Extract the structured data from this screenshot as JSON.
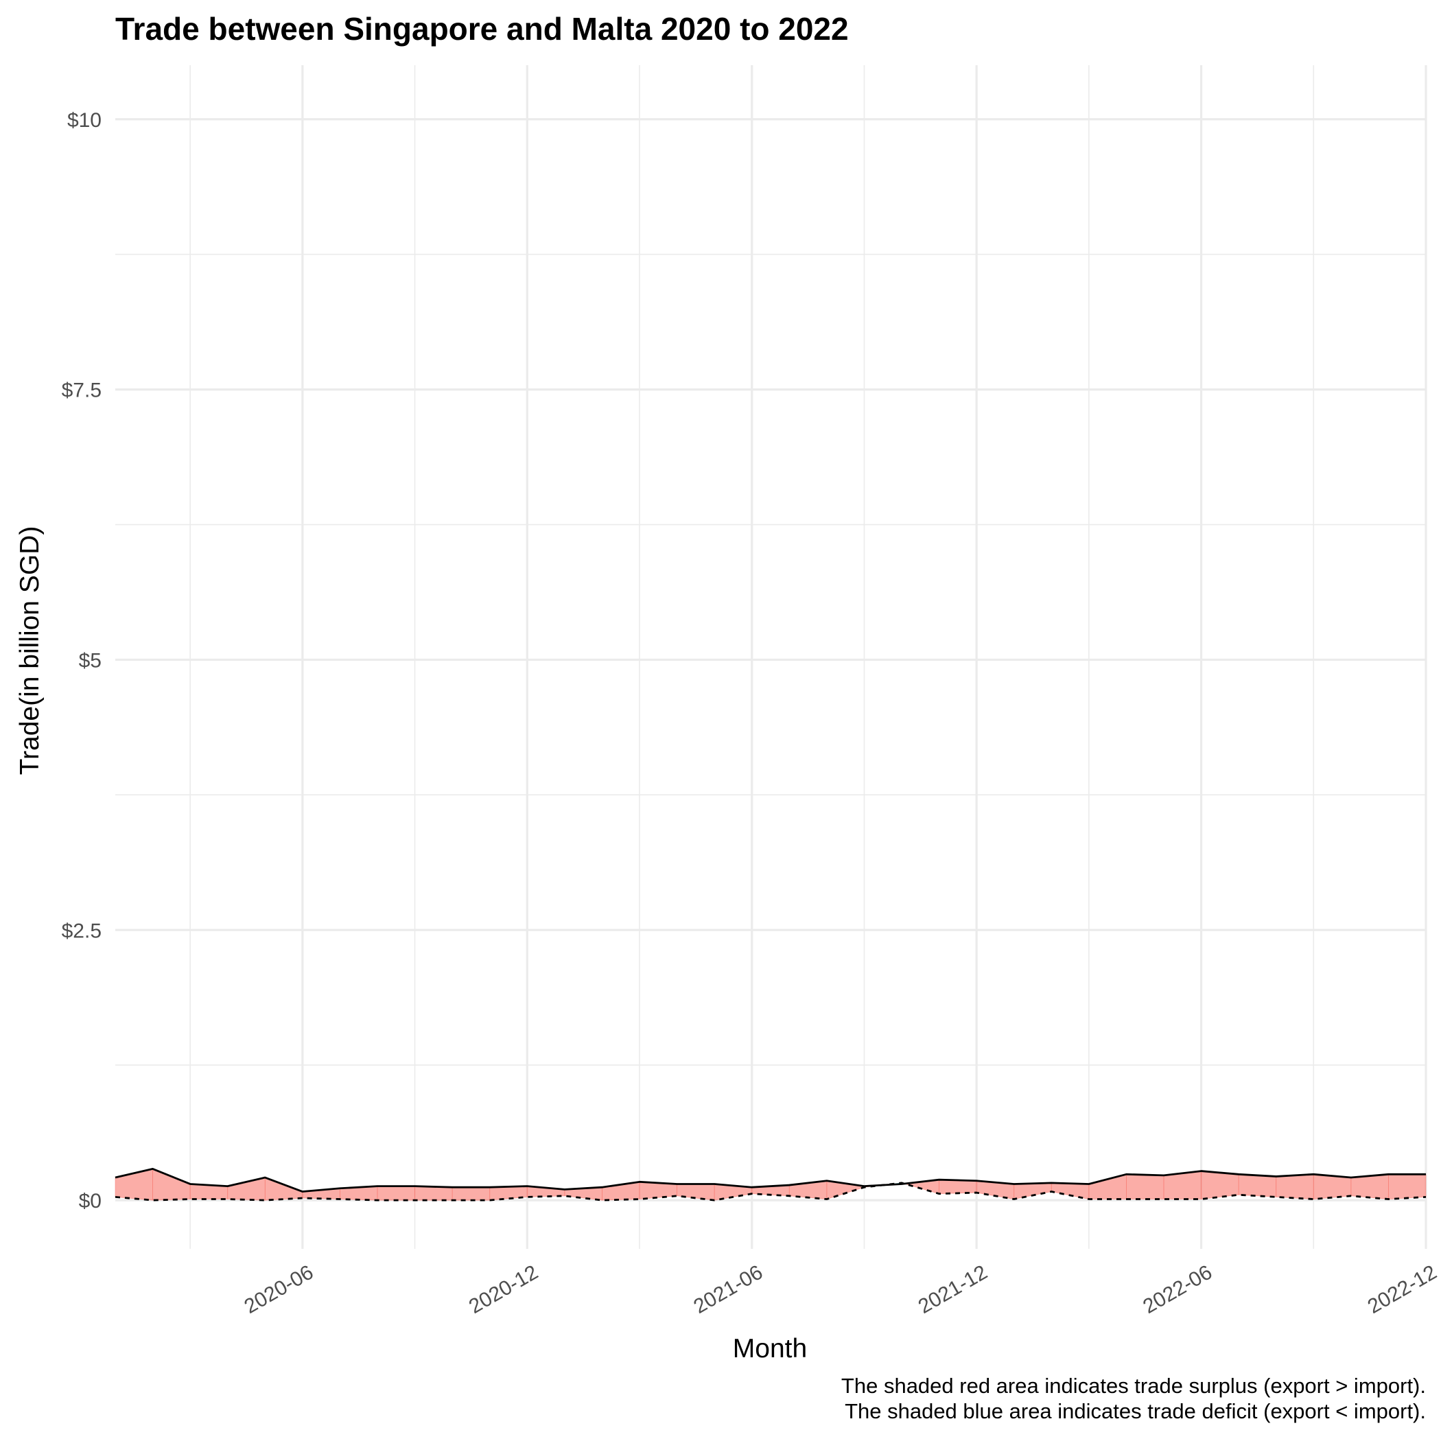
{
  "chart_data": {
    "type": "area",
    "title": "Trade between Singapore and Malta  2020 to 2022",
    "xlabel": "Month",
    "ylabel": "Trade(in billion SGD)",
    "caption": [
      "The shaded red area indicates trade surplus (export > import).",
      "The shaded blue area indicates trade deficit (export < import)."
    ],
    "ylim": [
      -0.45,
      10.5
    ],
    "y_ticks": [
      0,
      2.5,
      5,
      7.5,
      10
    ],
    "y_tick_labels": [
      "$0",
      "$2.5",
      "$5",
      "$7.5",
      "$10"
    ],
    "y_minor_ticks": [
      1.25,
      3.75,
      6.25,
      8.75
    ],
    "x_range": [
      "2020-01",
      "2022-12"
    ],
    "x_ticks": [
      "2020-06",
      "2020-12",
      "2021-06",
      "2021-12",
      "2022-06",
      "2022-12"
    ],
    "x_minor_ticks": [
      "2020-03",
      "2020-09",
      "2021-03",
      "2021-09",
      "2022-03",
      "2022-09"
    ],
    "grid": true,
    "colors": {
      "surplus": "#f8766d",
      "deficit": "#00bfc4",
      "line": "#000000",
      "grid": "#ebebeb"
    },
    "x": [
      "2020-01",
      "2020-02",
      "2020-03",
      "2020-04",
      "2020-05",
      "2020-06",
      "2020-07",
      "2020-08",
      "2020-09",
      "2020-10",
      "2020-11",
      "2020-12",
      "2021-01",
      "2021-02",
      "2021-03",
      "2021-04",
      "2021-05",
      "2021-06",
      "2021-07",
      "2021-08",
      "2021-09",
      "2021-10",
      "2021-11",
      "2021-12",
      "2022-01",
      "2022-02",
      "2022-03",
      "2022-04",
      "2022-05",
      "2022-06",
      "2022-07",
      "2022-08",
      "2022-09",
      "2022-10",
      "2022-11",
      "2022-12"
    ],
    "series": [
      {
        "line_style": "solid",
        "values": [
          0.21,
          0.29,
          0.15,
          0.13,
          0.21,
          0.08,
          0.11,
          0.13,
          0.13,
          0.12,
          0.12,
          0.13,
          0.1,
          0.12,
          0.17,
          0.15,
          0.15,
          0.12,
          0.14,
          0.18,
          0.13,
          0.15,
          0.19,
          0.18,
          0.15,
          0.16,
          0.15,
          0.24,
          0.23,
          0.27,
          0.24,
          0.22,
          0.24,
          0.21,
          0.24,
          0.24
        ]
      },
      {
        "line_style": "dashed",
        "values": [
          0.03,
          0.0,
          0.01,
          0.01,
          0.0,
          0.02,
          0.01,
          0.0,
          0.0,
          0.0,
          0.0,
          0.03,
          0.04,
          0.0,
          0.01,
          0.04,
          0.0,
          0.06,
          0.04,
          0.01,
          0.12,
          0.16,
          0.06,
          0.07,
          0.01,
          0.08,
          0.01,
          0.01,
          0.01,
          0.01,
          0.05,
          0.03,
          0.01,
          0.04,
          0.01,
          0.03
        ]
      }
    ]
  }
}
